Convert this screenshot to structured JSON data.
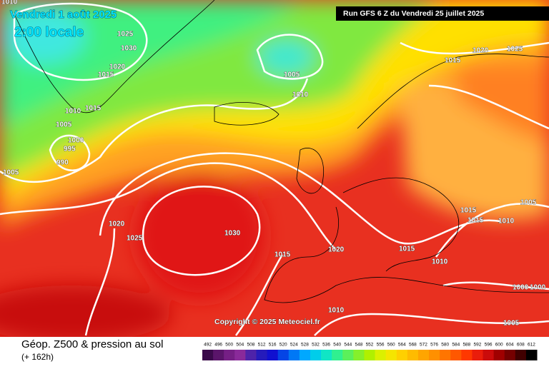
{
  "header": {
    "valid_date": "Vendredi 1 août 2025",
    "local_time": "2:00 locale",
    "run": "Run GFS 6 Z du Vendredi 25 juillet 2025"
  },
  "map": {
    "copyright": "Copyright © 2025 Meteociel.fr",
    "isobar_labels": [
      "1010",
      "1025",
      "1030",
      "1020",
      "1015",
      "1005",
      "1010",
      "1010",
      "1015",
      "1005",
      "1000",
      "995",
      "990",
      "1005",
      "1015",
      "1020",
      "1025",
      "1020",
      "1025",
      "1030",
      "1015",
      "1020",
      "1015",
      "1015",
      "1015",
      "1010",
      "1005",
      "1010",
      "1000",
      "1000",
      "1010",
      "1005"
    ]
  },
  "footer": {
    "title": "Géop. Z500 & pression au sol",
    "lead": "(+ 162h)"
  },
  "colorbar": {
    "labels": [
      492,
      496,
      500,
      504,
      508,
      512,
      516,
      520,
      524,
      528,
      532,
      536,
      540,
      544,
      548,
      552,
      556,
      560,
      564,
      568,
      572,
      576,
      580,
      584,
      588,
      592,
      596,
      600,
      604,
      608,
      612
    ]
  }
}
